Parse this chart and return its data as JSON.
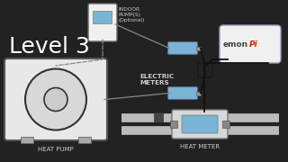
{
  "bg_color": "#222222",
  "diagram_bg": "#f0f0f0",
  "blue_fill": "#7ab3d4",
  "device_bg": "#e8e8e8",
  "device_bg2": "#d8d8d8",
  "emon_border": "#9999bb",
  "pipe_color": "#bbbbbb",
  "dark_line": "#333333",
  "wire_color": "#111111",
  "title": "Level 3",
  "title_color": "#ffffff",
  "title_fontsize": 18,
  "label_color": "#cccccc",
  "diagram_label_color": "#444444",
  "heat_pump_label": "HEAT PUMP",
  "heat_meter_label": "HEAT METER",
  "electric_meters_label": "ELECTRIC\nMETERS",
  "indoor_pump_label": "INDOOR\nPUMP(S)\n(Optional)",
  "emon_emon": "emon",
  "emon_pi": "Pi"
}
